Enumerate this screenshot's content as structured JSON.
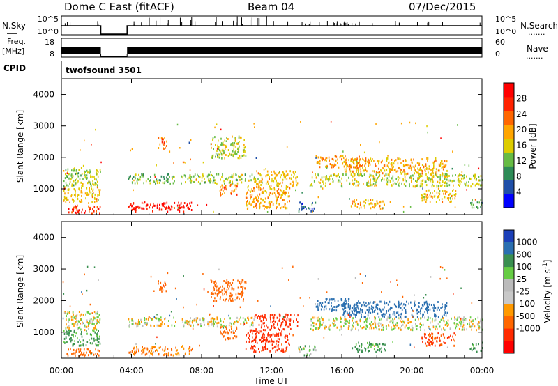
{
  "header": {
    "station": "Dome C East (fitACF)",
    "beam": "Beam 04",
    "date": "07/Dec/2015"
  },
  "strip_labels": {
    "nsky": "N.Sky",
    "nsearch": "N.Search",
    "freq": "Freq.",
    "freq_unit": "[MHz]",
    "nave": "Nave",
    "cpid": "CPID",
    "dots": "......."
  },
  "strip_ticks": {
    "nsky_top": "10^5",
    "nsky_bottom": "10^0",
    "nsearch_top": "10^5",
    "nsearch_bottom": "10^0",
    "freq_top": "18",
    "freq_bottom": "8",
    "nave_top": "60",
    "nave_bottom": "0"
  },
  "cpid_text": "twofsound 3501",
  "colors": {
    "power_scale": [
      "#0000ff",
      "#1f4fa8",
      "#2e8b57",
      "#66bb44",
      "#ddcc00",
      "#ffa500",
      "#ff6600",
      "#ff2200",
      "#ff0000"
    ],
    "velocity_scale": [
      "#1b3fb8",
      "#2a6fb0",
      "#3a8f50",
      "#66cc44",
      "#bbbbbb",
      "#c8c8c8",
      "#ff9900",
      "#ff6600",
      "#ff2a00",
      "#ff0000"
    ]
  },
  "chart_data": [
    {
      "type": "heatmap",
      "panel": "power",
      "ylabel": "Slant Range [km]",
      "yticks": [
        "1000",
        "2000",
        "3000",
        "4000"
      ],
      "ylim": [
        180,
        4500
      ],
      "xlim_hours": [
        0,
        24
      ],
      "colorbar_label": "Power [dB]",
      "colorbar_ticks": [
        "4",
        "8",
        "12",
        "16",
        "20",
        "24",
        "28"
      ],
      "blobs": [
        {
          "t": [
            0.15,
            2.2
          ],
          "r": [
            250,
            500
          ],
          "v": 26
        },
        {
          "t": [
            0.1,
            2.2
          ],
          "r": [
            600,
            1100
          ],
          "v": 18
        },
        {
          "t": [
            0.1,
            2.2
          ],
          "r": [
            1100,
            1700
          ],
          "v": 14
        },
        {
          "t": [
            3.8,
            7.5
          ],
          "r": [
            300,
            600
          ],
          "v": 29
        },
        {
          "t": [
            3.8,
            6.5
          ],
          "r": [
            1200,
            1500
          ],
          "v": 12
        },
        {
          "t": [
            6.8,
            11.0
          ],
          "r": [
            1200,
            1500
          ],
          "v": 14
        },
        {
          "t": [
            11.0,
            13.5
          ],
          "r": [
            1100,
            1600
          ],
          "v": 18
        },
        {
          "t": [
            14.2,
            24.0
          ],
          "r": [
            1100,
            1500
          ],
          "v": 15
        },
        {
          "t": [
            16.0,
            22.0
          ],
          "r": [
            1500,
            2000
          ],
          "v": 19
        },
        {
          "t": [
            8.5,
            10.5
          ],
          "r": [
            2000,
            2700
          ],
          "v": 15
        },
        {
          "t": [
            10.5,
            13.0
          ],
          "r": [
            400,
            1100
          ],
          "v": 20
        },
        {
          "t": [
            5.5,
            6.0
          ],
          "r": [
            2300,
            2700
          ],
          "v": 22
        },
        {
          "t": [
            14.5,
            17.0
          ],
          "r": [
            1700,
            2100
          ],
          "v": 20
        },
        {
          "t": [
            13.5,
            14.5
          ],
          "r": [
            300,
            600
          ],
          "v": 6
        },
        {
          "t": [
            16.5,
            18.5
          ],
          "r": [
            400,
            700
          ],
          "v": 18
        },
        {
          "t": [
            20.5,
            22.5
          ],
          "r": [
            600,
            1000
          ],
          "v": 18
        },
        {
          "t": [
            23.3,
            24.0
          ],
          "r": [
            400,
            700
          ],
          "v": 10
        },
        {
          "t": [
            9.0,
            10.0
          ],
          "r": [
            800,
            1200
          ],
          "v": 22
        }
      ]
    },
    {
      "type": "heatmap",
      "panel": "velocity",
      "ylabel": "Slant Range [km]",
      "yticks": [
        "1000",
        "2000",
        "3000",
        "4000"
      ],
      "ylim": [
        180,
        4500
      ],
      "xlim_hours": [
        0,
        24
      ],
      "xticks": [
        "00:00",
        "04:00",
        "08:00",
        "12:00",
        "16:00",
        "20:00",
        "00:00"
      ],
      "xlabel": "Time UT",
      "colorbar_label": "Velocity [m s^-1]",
      "colorbar_ticks": [
        "1000",
        "500",
        "100",
        "25",
        "-25",
        "-100",
        "-500",
        "-1000"
      ],
      "blobs": [
        {
          "t": [
            0.15,
            2.2
          ],
          "r": [
            250,
            500
          ],
          "v": -300
        },
        {
          "t": [
            0.1,
            2.2
          ],
          "r": [
            600,
            1100
          ],
          "v": 150
        },
        {
          "t": [
            0.1,
            2.2
          ],
          "r": [
            1100,
            1700
          ],
          "v": 0
        },
        {
          "t": [
            3.8,
            7.5
          ],
          "r": [
            300,
            600
          ],
          "v": -110
        },
        {
          "t": [
            3.8,
            6.5
          ],
          "r": [
            1200,
            1500
          ],
          "v": 0
        },
        {
          "t": [
            6.8,
            11.0
          ],
          "r": [
            1200,
            1500
          ],
          "v": 0
        },
        {
          "t": [
            11.0,
            13.5
          ],
          "r": [
            1100,
            1600
          ],
          "v": -600
        },
        {
          "t": [
            14.2,
            24.0
          ],
          "r": [
            1100,
            1500
          ],
          "v": 0
        },
        {
          "t": [
            16.0,
            22.0
          ],
          "r": [
            1500,
            2000
          ],
          "v": 600
        },
        {
          "t": [
            8.5,
            10.5
          ],
          "r": [
            2000,
            2700
          ],
          "v": -400
        },
        {
          "t": [
            10.5,
            13.0
          ],
          "r": [
            400,
            1100
          ],
          "v": -600
        },
        {
          "t": [
            5.5,
            6.0
          ],
          "r": [
            2300,
            2700
          ],
          "v": -300
        },
        {
          "t": [
            14.5,
            17.0
          ],
          "r": [
            1700,
            2100
          ],
          "v": 800
        },
        {
          "t": [
            13.5,
            14.5
          ],
          "r": [
            300,
            600
          ],
          "v": 60
        },
        {
          "t": [
            16.5,
            18.5
          ],
          "r": [
            400,
            700
          ],
          "v": 150
        },
        {
          "t": [
            20.5,
            22.5
          ],
          "r": [
            600,
            1000
          ],
          "v": -500
        },
        {
          "t": [
            23.3,
            24.0
          ],
          "r": [
            400,
            700
          ],
          "v": 150
        },
        {
          "t": [
            9.0,
            10.0
          ],
          "r": [
            800,
            1200
          ],
          "v": -400
        }
      ]
    }
  ]
}
